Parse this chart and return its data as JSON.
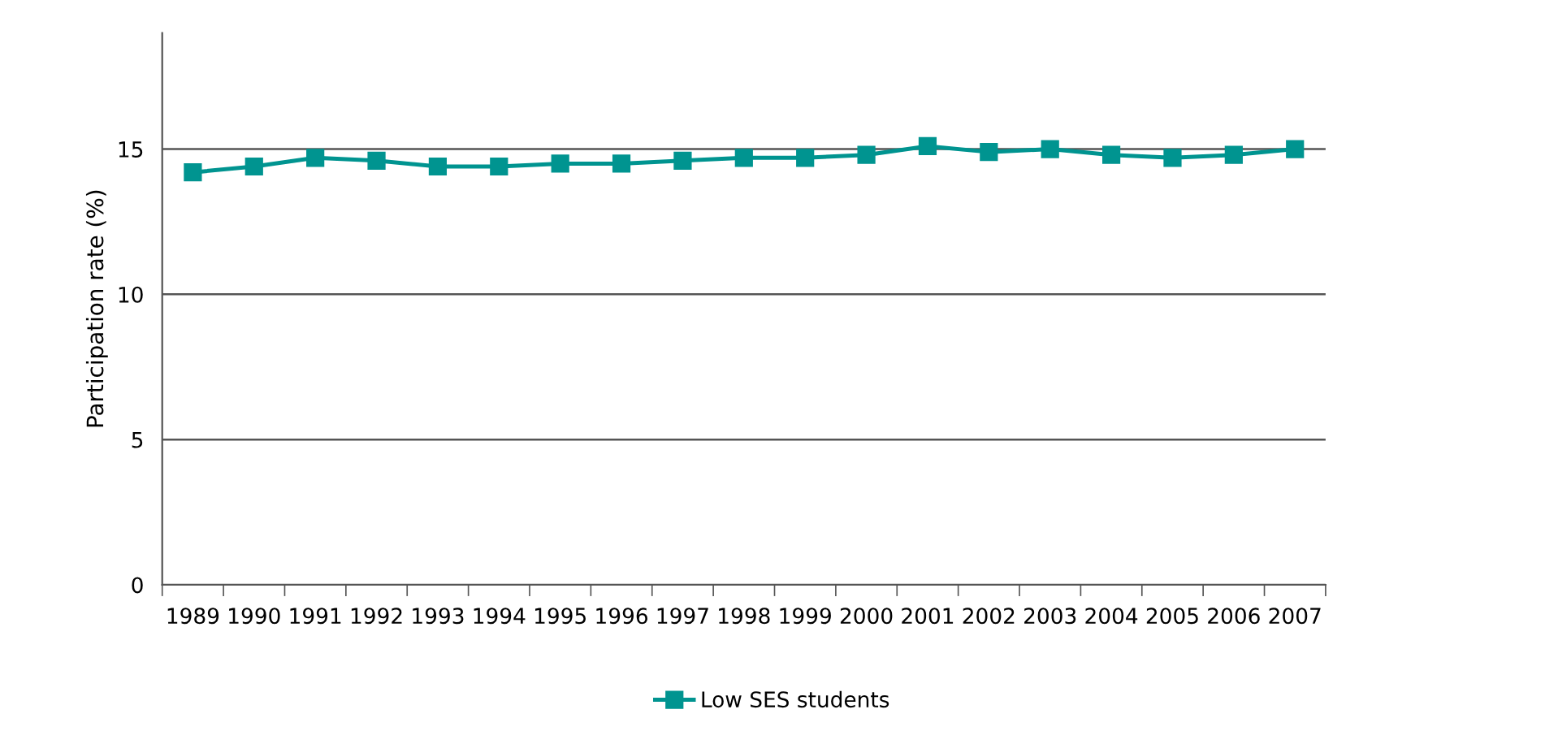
{
  "chart_data": {
    "type": "line",
    "ylabel": "Participation rate (%)",
    "categories": [
      "1989",
      "1990",
      "1991",
      "1992",
      "1993",
      "1994",
      "1995",
      "1996",
      "1997",
      "1998",
      "1999",
      "2000",
      "2001",
      "2002",
      "2003",
      "2004",
      "2005",
      "2006",
      "2007"
    ],
    "series": [
      {
        "name": "Low SES students",
        "color": "#009490",
        "values": [
          14.2,
          14.4,
          14.7,
          14.6,
          14.4,
          14.4,
          14.5,
          14.5,
          14.6,
          14.7,
          14.7,
          14.8,
          15.1,
          14.9,
          15.0,
          14.8,
          14.7,
          14.8,
          15.0
        ]
      }
    ],
    "ylim": [
      0,
      19
    ],
    "yticks": [
      0,
      5,
      10,
      15
    ],
    "grid": "y",
    "legend": "bottom",
    "marker": "square",
    "line_style": "solid"
  }
}
